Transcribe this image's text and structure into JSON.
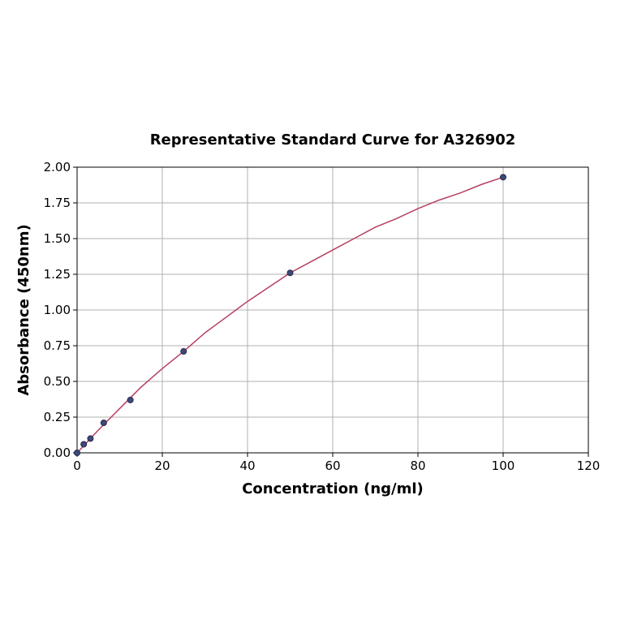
{
  "chart_data": {
    "type": "scatter",
    "title": "Representative Standard Curve for A326902",
    "xlabel": "Concentration (ng/ml)",
    "ylabel": "Absorbance (450nm)",
    "xlim": [
      0,
      120
    ],
    "ylim": [
      0,
      2.0
    ],
    "xticks": [
      0,
      20,
      40,
      60,
      80,
      100,
      120
    ],
    "yticks": [
      0.0,
      0.25,
      0.5,
      0.75,
      1.0,
      1.25,
      1.5,
      1.75,
      2.0
    ],
    "xtick_labels": [
      "0",
      "20",
      "40",
      "60",
      "80",
      "100",
      "120"
    ],
    "ytick_labels": [
      "0.00",
      "0.25",
      "0.50",
      "0.75",
      "1.00",
      "1.25",
      "1.50",
      "1.75",
      "2.00"
    ],
    "grid": true,
    "series": [
      {
        "kind": "points",
        "x": [
          0,
          1.56,
          3.13,
          6.25,
          12.5,
          25,
          50,
          100
        ],
        "y": [
          0.0,
          0.06,
          0.1,
          0.21,
          0.37,
          0.71,
          1.26,
          1.93
        ]
      },
      {
        "kind": "fit-curve",
        "x": [
          0,
          5,
          10,
          15,
          20,
          25,
          30,
          35,
          40,
          45,
          50,
          55,
          60,
          65,
          70,
          75,
          80,
          85,
          90,
          95,
          100
        ],
        "y": [
          0.0,
          0.16,
          0.31,
          0.46,
          0.59,
          0.71,
          0.84,
          0.95,
          1.06,
          1.16,
          1.26,
          1.34,
          1.42,
          1.5,
          1.58,
          1.64,
          1.71,
          1.77,
          1.82,
          1.88,
          1.93
        ]
      }
    ],
    "colors": {
      "points": "#3b4a7a",
      "curve": "#b5405f"
    }
  }
}
